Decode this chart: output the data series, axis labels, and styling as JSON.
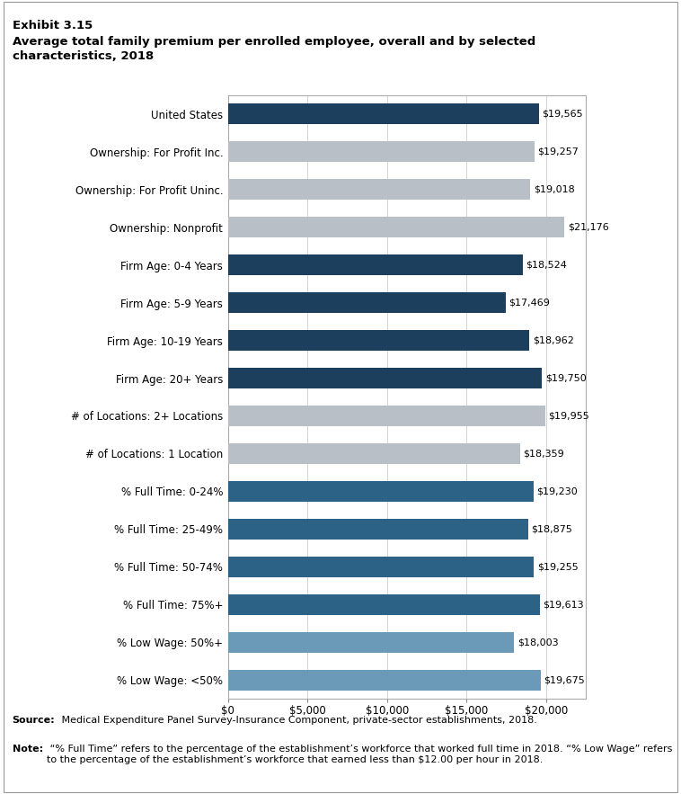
{
  "categories": [
    "United States",
    "Ownership: For Profit Inc.",
    "Ownership: For Profit Uninc.",
    "Ownership: Nonprofit",
    "Firm Age: 0-4 Years",
    "Firm Age: 5-9 Years",
    "Firm Age: 10-19 Years",
    "Firm Age: 20+ Years",
    "# of Locations: 2+ Locations",
    "# of Locations: 1 Location",
    "% Full Time: 0-24%",
    "% Full Time: 25-49%",
    "% Full Time: 50-74%",
    "% Full Time: 75%+",
    "% Low Wage: 50%+",
    "% Low Wage: <50%"
  ],
  "values": [
    19565,
    19257,
    19018,
    21176,
    18524,
    17469,
    18962,
    19750,
    19955,
    18359,
    19230,
    18875,
    19255,
    19613,
    18003,
    19675
  ],
  "colors": [
    "#1c3f5e",
    "#b8bfc7",
    "#b8bfc7",
    "#b8bfc7",
    "#1c3f5e",
    "#1c3f5e",
    "#1c3f5e",
    "#1c3f5e",
    "#b8bfc7",
    "#b8bfc7",
    "#2b6285",
    "#2b6285",
    "#2b6285",
    "#2b6285",
    "#6b9ab8",
    "#6b9ab8"
  ],
  "xlim": [
    0,
    22500
  ],
  "xticks": [
    0,
    5000,
    10000,
    15000,
    20000
  ],
  "xticklabels": [
    "$0",
    "$5,000",
    "$10,000",
    "$15,000",
    "$20,000"
  ],
  "exhibit_label": "Exhibit 3.15",
  "chart_title": "Average total family premium per enrolled employee, overall and by selected\ncharacteristics, 2018",
  "source_bold": "Source:",
  "source_rest": " Medical Expenditure Panel Survey-Insurance Component, private-sector establishments, 2018.",
  "note_bold": "Note:",
  "note_rest": " “% Full Time” refers to the percentage of the establishment’s workforce that worked full time in 2018. “% Low Wage” refers to the percentage of the establishment’s workforce that earned less than $12.00 per hour in 2018.",
  "bar_height": 0.55,
  "label_fontsize": 8.5,
  "tick_fontsize": 8.5,
  "value_fontsize": 8.0,
  "title_fontsize": 9.5,
  "exhibit_fontsize": 9.5
}
